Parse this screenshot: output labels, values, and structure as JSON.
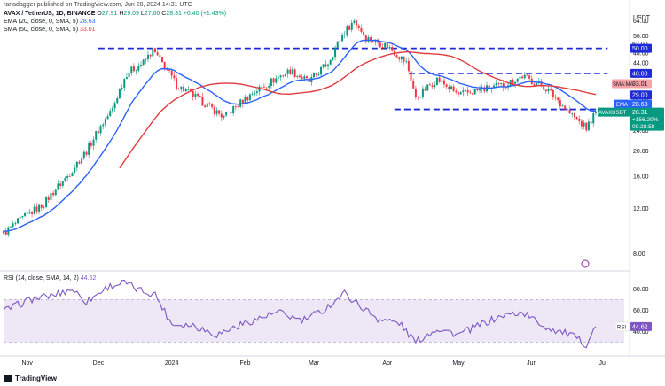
{
  "header": {
    "published": "ranadagger published on TradingView.com, Jun 28, 2024 14:31 UTC",
    "symbol_line": "AVAX / TetherUS, 1D, BINANCE",
    "ohlc": {
      "o_label": "O",
      "o": "27.91",
      "h_label": "H",
      "h": "29.09",
      "l_label": "L",
      "l": "27.66",
      "c_label": "C",
      "c": "28.31",
      "chg": "+0.40 (+1.43%)"
    },
    "ema_label": "EMA (20, close, 0, SMA, 5)",
    "ema_value": "28.63",
    "sma_label": "SMA (50, close, 0, SMA, 5)",
    "sma_value": "33.01",
    "rsi_label": "RSI (14, close, SMA, 14, 2)",
    "rsi_value": "44.62"
  },
  "footer": {
    "brand": "TradingView"
  },
  "colors": {
    "up": "#089981",
    "down": "#f23645",
    "ema": "#2962ff",
    "sma": "#e03a3e",
    "rsi": "#7e57c2",
    "rsi_band": "#ede7f6",
    "level": "#1e2bd6",
    "price_tag": "#089981"
  },
  "chart_data": [
    {
      "type": "candlestick",
      "title": "AVAX / TetherUS, 1D, BINANCE",
      "currency": "USDT",
      "yscale": "log",
      "ylim": [
        7.2,
        70
      ],
      "yticks": [
        "64.00",
        "56.00",
        "48.00",
        "44.00",
        "36.00",
        "32.00",
        "28.00",
        "24.00",
        "20.00",
        "16.00",
        "12.00",
        "8.00"
      ],
      "yticks_values": [
        64,
        56,
        48,
        44,
        36,
        32,
        28,
        24,
        20,
        16,
        12,
        8
      ],
      "right_tags": [
        "52.00",
        "50.00",
        "40.00",
        "33.01",
        "29.00",
        "28.63",
        "28.31"
      ],
      "xlabels": [
        "Nov",
        "Dec",
        "2024",
        "Feb",
        "Mar",
        "Apr",
        "May",
        "Jun",
        "Jul"
      ],
      "xlabels_dates": [
        "2023-11-01",
        "2023-12-01",
        "2024-01-01",
        "2024-02-01",
        "2024-03-01",
        "2024-04-01",
        "2024-05-01",
        "2024-06-01",
        "2024-07-01"
      ],
      "x_start": "2023-10-22",
      "x_end": "2024-07-10",
      "levels": [
        {
          "label": "50.00",
          "value": 50,
          "from": "2023-12-01",
          "to": "2024-07-03"
        },
        {
          "label": "40.00",
          "value": 40,
          "from": "2024-04-10",
          "to": "2024-07-03"
        },
        {
          "label": "29.00",
          "value": 29,
          "from": "2024-04-04",
          "to": "2024-07-03"
        }
      ],
      "anchors": [
        [
          "2023-10-22",
          9.6
        ],
        [
          "2023-11-08",
          12.5
        ],
        [
          "2023-11-18",
          16
        ],
        [
          "2023-11-26",
          20
        ],
        [
          "2023-12-07",
          29
        ],
        [
          "2023-12-13",
          40
        ],
        [
          "2023-12-20",
          44
        ],
        [
          "2023-12-24",
          49
        ],
        [
          "2024-01-03",
          36
        ],
        [
          "2024-01-14",
          31
        ],
        [
          "2024-01-23",
          27
        ],
        [
          "2024-02-05",
          34
        ],
        [
          "2024-02-20",
          41
        ],
        [
          "2024-02-28",
          37
        ],
        [
          "2024-03-07",
          44
        ],
        [
          "2024-03-14",
          58
        ],
        [
          "2024-03-18",
          64
        ],
        [
          "2024-03-23",
          55
        ],
        [
          "2024-04-01",
          51
        ],
        [
          "2024-04-09",
          44
        ],
        [
          "2024-04-13",
          32
        ],
        [
          "2024-04-22",
          38
        ],
        [
          "2024-05-01",
          33
        ],
        [
          "2024-05-20",
          36
        ],
        [
          "2024-05-28",
          39
        ],
        [
          "2024-06-07",
          35
        ],
        [
          "2024-06-17",
          28
        ],
        [
          "2024-06-24",
          24.5
        ],
        [
          "2024-06-28",
          28.31
        ]
      ],
      "series": [
        {
          "name": "EMA",
          "value": "28.63"
        },
        {
          "name": "SMA:MA",
          "value": "33.01"
        },
        {
          "name": "AVAXUSDT",
          "value": "28.31",
          "change": "+156.20%",
          "countdown": "09:28:58"
        }
      ]
    },
    {
      "type": "line",
      "title": "RSI (14, close, SMA, 14, 2)",
      "ylim": [
        22,
        92
      ],
      "yticks": [
        "80.00",
        "60.00",
        "40.00"
      ],
      "yticks_values": [
        80,
        60,
        40
      ],
      "band": [
        30,
        70
      ],
      "last": "44.62",
      "tag": "RSI",
      "anchors": [
        [
          "2023-10-22",
          59
        ],
        [
          "2023-11-02",
          70
        ],
        [
          "2023-11-12",
          74
        ],
        [
          "2023-11-20",
          80
        ],
        [
          "2023-11-26",
          68
        ],
        [
          "2023-12-05",
          82
        ],
        [
          "2023-12-12",
          86
        ],
        [
          "2023-12-18",
          79
        ],
        [
          "2023-12-25",
          75
        ],
        [
          "2024-01-01",
          47
        ],
        [
          "2024-01-10",
          46
        ],
        [
          "2024-01-20",
          37
        ],
        [
          "2024-02-01",
          48
        ],
        [
          "2024-02-15",
          58
        ],
        [
          "2024-02-25",
          50
        ],
        [
          "2024-03-05",
          60
        ],
        [
          "2024-03-14",
          76
        ],
        [
          "2024-03-20",
          65
        ],
        [
          "2024-03-28",
          52
        ],
        [
          "2024-04-06",
          48
        ],
        [
          "2024-04-13",
          30
        ],
        [
          "2024-04-22",
          43
        ],
        [
          "2024-05-01",
          37
        ],
        [
          "2024-05-12",
          48
        ],
        [
          "2024-05-20",
          55
        ],
        [
          "2024-05-28",
          58
        ],
        [
          "2024-06-07",
          44
        ],
        [
          "2024-06-17",
          37
        ],
        [
          "2024-06-24",
          28
        ],
        [
          "2024-06-28",
          44.62
        ]
      ]
    }
  ]
}
